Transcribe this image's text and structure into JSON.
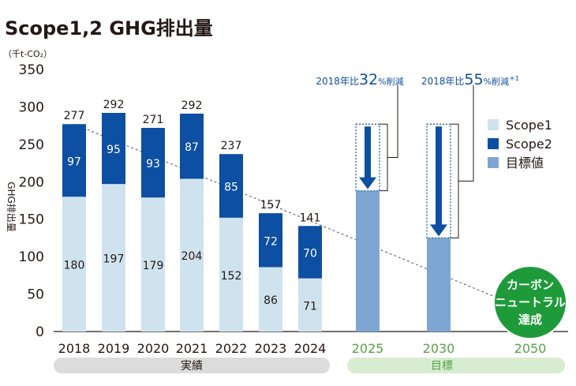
{
  "chart_data": {
    "type": "bar",
    "title": "Scope1,2 GHG排出量",
    "unit": "（千t-CO₂）",
    "ylabel": "GHG排出量",
    "ylim": [
      0,
      350
    ],
    "yticks": [
      "0",
      "50",
      "100",
      "150",
      "200",
      "250",
      "300",
      "350"
    ],
    "actual_categories": [
      "2018",
      "2019",
      "2020",
      "2021",
      "2022",
      "2023",
      "2024"
    ],
    "series": [
      {
        "name": "Scope1",
        "color": "#cfe3ef",
        "values": [
          180,
          197,
          179,
          204,
          152,
          86,
          71
        ]
      },
      {
        "name": "Scope2",
        "color": "#0d4fa2",
        "values": [
          97,
          95,
          93,
          87,
          85,
          72,
          70
        ]
      }
    ],
    "totals": [
      277,
      292,
      271,
      292,
      237,
      157,
      141
    ],
    "target_categories": [
      "2025",
      "2030",
      "2050"
    ],
    "targets": {
      "name": "目標値",
      "color": "#7ea6d3",
      "values": [
        188,
        125,
        0
      ]
    },
    "target_notes": [
      {
        "prefix": "2018年比",
        "number": "32",
        "suffix": "%削減",
        "footnote": ""
      },
      {
        "prefix": "2018年比",
        "number": "55",
        "suffix": "%削減",
        "footnote": "＊1"
      }
    ],
    "legend": [
      "Scope1",
      "Scope2",
      "目標値"
    ],
    "neutral_badge": [
      "カーボン",
      "ニュートラル",
      "達成"
    ],
    "group_labels": {
      "actual": "実績",
      "target": "目標"
    },
    "colors": {
      "axis": "#231815",
      "group_bar": "#dcdcdc",
      "target_group_bar": "#d8ecd0",
      "target_text": "#55a346",
      "badge": "#1e9a3a",
      "arrow": "#0d4fa2",
      "scope2_label": "#ffffff",
      "scope1_label": "#231815"
    }
  }
}
